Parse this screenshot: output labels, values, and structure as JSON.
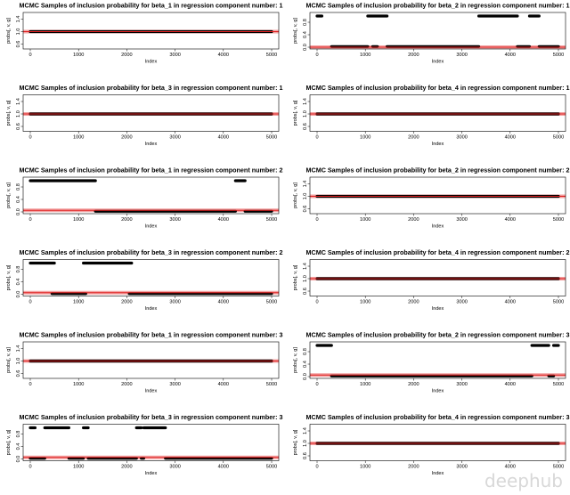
{
  "watermark": "deephub",
  "colors": {
    "trace": "#000000",
    "mean": "#e02020",
    "band": "#f2a0a0",
    "axis": "#000000"
  },
  "chart_data": [
    {
      "type": "line",
      "title": "MCMC Samples of inclusion probability for beta_1 in regression component number: 1",
      "xlabel": "Index",
      "ylabel": "probs[, v, g]",
      "xlim": [
        0,
        5000
      ],
      "ylim": [
        0.5,
        1.5
      ],
      "xticks": [
        0,
        1000,
        2000,
        3000,
        4000,
        5000
      ],
      "yticks": [
        0.6,
        1.0,
        1.4
      ],
      "yticklabels": [
        "0.6",
        "1.0",
        "1.4"
      ],
      "mean": 1.0,
      "segments": [
        {
          "x0": 0,
          "x1": 5000,
          "y": 1.0
        }
      ]
    },
    {
      "type": "line",
      "title": "MCMC Samples of inclusion probability for beta_2 in regression component number: 1",
      "xlabel": "Index",
      "ylabel": "probs[, v, g]",
      "xlim": [
        0,
        5000
      ],
      "ylim": [
        0,
        1
      ],
      "xticks": [
        0,
        1000,
        2000,
        3000,
        4000,
        5000
      ],
      "yticks": [
        0.0,
        0.4,
        0.8
      ],
      "yticklabels": [
        "0.0",
        "0.4",
        "0.8"
      ],
      "mean": 0.0,
      "segments": [
        {
          "x0": 0,
          "x1": 100,
          "y": 1.0
        },
        {
          "x0": 1050,
          "x1": 1450,
          "y": 1.0
        },
        {
          "x0": 3350,
          "x1": 4150,
          "y": 1.0
        },
        {
          "x0": 4400,
          "x1": 4600,
          "y": 1.0
        },
        {
          "x0": 300,
          "x1": 1050,
          "y": 0.02
        },
        {
          "x0": 1150,
          "x1": 1250,
          "y": 0.02
        },
        {
          "x0": 1450,
          "x1": 3350,
          "y": 0.02
        },
        {
          "x0": 4150,
          "x1": 4400,
          "y": 0.02
        },
        {
          "x0": 4600,
          "x1": 5000,
          "y": 0.02
        }
      ]
    },
    {
      "type": "line",
      "title": "MCMC Samples of inclusion probability for beta_3 in regression component number: 1",
      "xlabel": "Index",
      "ylabel": "probs[, v, g]",
      "xlim": [
        0,
        5000
      ],
      "ylim": [
        0.5,
        1.5
      ],
      "xticks": [
        0,
        1000,
        2000,
        3000,
        4000,
        5000
      ],
      "yticks": [
        0.6,
        1.0,
        1.4
      ],
      "yticklabels": [
        "0.6",
        "1.0",
        "1.4"
      ],
      "mean": 1.0,
      "segments": [
        {
          "x0": 0,
          "x1": 5000,
          "y": 1.0
        }
      ]
    },
    {
      "type": "line",
      "title": "MCMC Samples of inclusion probability for beta_4 in regression component number: 1",
      "xlabel": "Index",
      "ylabel": "probs[, v, g]",
      "xlim": [
        0,
        5000
      ],
      "ylim": [
        0.5,
        1.5
      ],
      "xticks": [
        0,
        1000,
        2000,
        3000,
        4000,
        5000
      ],
      "yticks": [
        0.6,
        1.0,
        1.4
      ],
      "yticklabels": [
        "0.6",
        "1.0",
        "1.4"
      ],
      "mean": 1.0,
      "segments": [
        {
          "x0": 0,
          "x1": 5000,
          "y": 1.0
        }
      ]
    },
    {
      "type": "line",
      "title": "MCMC Samples of inclusion probability for beta_1 in regression component number: 2",
      "xlabel": "Index",
      "ylabel": "probs[, v, g]",
      "xlim": [
        0,
        5000
      ],
      "ylim": [
        0,
        1
      ],
      "xticks": [
        0,
        1000,
        2000,
        3000,
        4000,
        5000
      ],
      "yticks": [
        0.0,
        0.4,
        0.8
      ],
      "yticklabels": [
        "0.0",
        "0.4",
        "0.8"
      ],
      "mean": 0.05,
      "segments": [
        {
          "x0": 0,
          "x1": 1350,
          "y": 1.0
        },
        {
          "x0": 4250,
          "x1": 4450,
          "y": 1.0
        },
        {
          "x0": 1350,
          "x1": 4250,
          "y": 0.02
        },
        {
          "x0": 4450,
          "x1": 5000,
          "y": 0.02
        }
      ]
    },
    {
      "type": "line",
      "title": "MCMC Samples of inclusion probability for beta_2 in regression component number: 2",
      "xlabel": "Index",
      "ylabel": "probs[, v, g]",
      "xlim": [
        0,
        5000
      ],
      "ylim": [
        0.5,
        1.5
      ],
      "xticks": [
        0,
        1000,
        2000,
        3000,
        4000,
        5000
      ],
      "yticks": [
        0.6,
        1.0,
        1.4
      ],
      "yticklabels": [
        "0.6",
        "1.0",
        "1.4"
      ],
      "mean": 1.0,
      "segments": [
        {
          "x0": 0,
          "x1": 5000,
          "y": 1.0
        }
      ]
    },
    {
      "type": "line",
      "title": "MCMC Samples of inclusion probability for beta_3 in regression component number: 2",
      "xlabel": "Index",
      "ylabel": "probs[, v, g]",
      "xlim": [
        0,
        5000
      ],
      "ylim": [
        0,
        1
      ],
      "xticks": [
        0,
        1000,
        2000,
        3000,
        4000,
        5000
      ],
      "yticks": [
        0.0,
        0.4,
        0.8
      ],
      "yticklabels": [
        "0.0",
        "0.4",
        "0.8"
      ],
      "mean": 0.05,
      "segments": [
        {
          "x0": 0,
          "x1": 500,
          "y": 1.0
        },
        {
          "x0": 1100,
          "x1": 2100,
          "y": 1.0
        },
        {
          "x0": 450,
          "x1": 1150,
          "y": 0.02
        },
        {
          "x0": 2050,
          "x1": 5000,
          "y": 0.02
        }
      ]
    },
    {
      "type": "line",
      "title": "MCMC Samples of inclusion probability for beta_4 in regression component number: 2",
      "xlabel": "Index",
      "ylabel": "probs[, v, g]",
      "xlim": [
        0,
        5000
      ],
      "ylim": [
        0.5,
        1.5
      ],
      "xticks": [
        0,
        1000,
        2000,
        3000,
        4000,
        5000
      ],
      "yticks": [
        0.6,
        1.0,
        1.4
      ],
      "yticklabels": [
        "0.6",
        "1.0",
        "1.4"
      ],
      "mean": 1.0,
      "segments": [
        {
          "x0": 0,
          "x1": 5000,
          "y": 1.0
        }
      ]
    },
    {
      "type": "line",
      "title": "MCMC Samples of inclusion probability for beta_1 in regression component number: 3",
      "xlabel": "Index",
      "ylabel": "probs[, v, g]",
      "xlim": [
        0,
        5000
      ],
      "ylim": [
        0.5,
        1.5
      ],
      "xticks": [
        0,
        1000,
        2000,
        3000,
        4000,
        5000
      ],
      "yticks": [
        0.6,
        1.0,
        1.4
      ],
      "yticklabels": [
        "0.6",
        "1.0",
        "1.4"
      ],
      "mean": 1.0,
      "segments": [
        {
          "x0": 0,
          "x1": 5000,
          "y": 1.0
        }
      ]
    },
    {
      "type": "line",
      "title": "MCMC Samples of inclusion probability for beta_2 in regression component number: 3",
      "xlabel": "Index",
      "ylabel": "probs[, v, g]",
      "xlim": [
        0,
        5000
      ],
      "ylim": [
        0,
        1
      ],
      "xticks": [
        0,
        1000,
        2000,
        3000,
        4000,
        5000
      ],
      "yticks": [
        0.0,
        0.4,
        0.8
      ],
      "yticklabels": [
        "0.0",
        "0.4",
        "0.8"
      ],
      "mean": 0.05,
      "segments": [
        {
          "x0": 0,
          "x1": 300,
          "y": 1.0
        },
        {
          "x0": 4450,
          "x1": 4800,
          "y": 1.0
        },
        {
          "x0": 4900,
          "x1": 5000,
          "y": 1.0
        },
        {
          "x0": 300,
          "x1": 4450,
          "y": 0.02
        },
        {
          "x0": 4800,
          "x1": 4900,
          "y": 0.02
        }
      ]
    },
    {
      "type": "line",
      "title": "MCMC Samples of inclusion probability for beta_3 in regression component number: 3",
      "xlabel": "Index",
      "ylabel": "probs[, v, g]",
      "xlim": [
        0,
        5000
      ],
      "ylim": [
        0,
        1
      ],
      "xticks": [
        0,
        1000,
        2000,
        3000,
        4000,
        5000
      ],
      "yticks": [
        0.0,
        0.4,
        0.8
      ],
      "yticklabels": [
        "0.0",
        "0.4",
        "0.8"
      ],
      "mean": 0.05,
      "segments": [
        {
          "x0": 0,
          "x1": 100,
          "y": 1.0
        },
        {
          "x0": 300,
          "x1": 800,
          "y": 1.0
        },
        {
          "x0": 1100,
          "x1": 1200,
          "y": 1.0
        },
        {
          "x0": 2200,
          "x1": 2300,
          "y": 1.0
        },
        {
          "x0": 2350,
          "x1": 2800,
          "y": 1.0
        },
        {
          "x0": 0,
          "x1": 300,
          "y": 0.02
        },
        {
          "x0": 800,
          "x1": 1100,
          "y": 0.02
        },
        {
          "x0": 1200,
          "x1": 2200,
          "y": 0.02
        },
        {
          "x0": 2300,
          "x1": 2350,
          "y": 0.02
        },
        {
          "x0": 2800,
          "x1": 5000,
          "y": 0.02
        }
      ]
    },
    {
      "type": "line",
      "title": "MCMC Samples of inclusion probability for beta_4 in regression component number: 3",
      "xlabel": "Index",
      "ylabel": "probs[, v, g]",
      "xlim": [
        0,
        5000
      ],
      "ylim": [
        0.5,
        1.5
      ],
      "xticks": [
        0,
        1000,
        2000,
        3000,
        4000,
        5000
      ],
      "yticks": [
        0.6,
        1.0,
        1.4
      ],
      "yticklabels": [
        "0.6",
        "1.0",
        "1.4"
      ],
      "mean": 1.0,
      "segments": [
        {
          "x0": 0,
          "x1": 5000,
          "y": 1.0
        }
      ]
    }
  ]
}
